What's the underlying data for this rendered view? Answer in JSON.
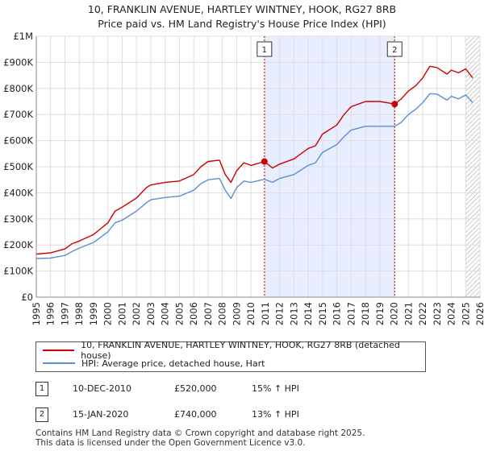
{
  "title_line1": "10, FRANKLIN AVENUE, HARTLEY WINTNEY, HOOK, RG27 8RB",
  "title_line2": "Price paid vs. HM Land Registry's House Price Index (HPI)",
  "legend": {
    "property_label": "10, FRANKLIN AVENUE, HARTLEY WINTNEY, HOOK, RG27 8RB (detached house)",
    "hpi_label": "HPI: Average price, detached house, Hart"
  },
  "transactions": [
    {
      "num": "1",
      "date": "10-DEC-2010",
      "price": "£520,000",
      "hpi": "15% ↑ HPI"
    },
    {
      "num": "2",
      "date": "15-JAN-2020",
      "price": "£740,000",
      "hpi": "13% ↑ HPI"
    }
  ],
  "footer_line1": "Contains HM Land Registry data © Crown copyright and database right 2025.",
  "footer_line2": "This data is licensed under the Open Government Licence v3.0.",
  "colors": {
    "property": "#cc0000",
    "hpi": "#5b8fd0",
    "shade": "#e8eeff",
    "grid": "#dddddd",
    "marker_line": "#cc0000"
  },
  "chart_data": {
    "type": "line",
    "xlim": [
      1995,
      2026
    ],
    "ylim": [
      0,
      1000000
    ],
    "y_ticks": [
      0,
      100000,
      200000,
      300000,
      400000,
      500000,
      600000,
      700000,
      800000,
      900000,
      1000000
    ],
    "y_tick_labels": [
      "£0",
      "£100K",
      "£200K",
      "£300K",
      "£400K",
      "£500K",
      "£600K",
      "£700K",
      "£800K",
      "£900K",
      "£1M"
    ],
    "x_ticks": [
      1995,
      1996,
      1997,
      1998,
      1999,
      2000,
      2001,
      2002,
      2003,
      2004,
      2005,
      2006,
      2007,
      2008,
      2009,
      2010,
      2011,
      2012,
      2013,
      2014,
      2015,
      2016,
      2017,
      2018,
      2019,
      2020,
      2021,
      2022,
      2023,
      2024,
      2025,
      2026
    ],
    "x_tick_labels": [
      "1995",
      "1996",
      "1997",
      "1998",
      "1999",
      "2000",
      "2001",
      "2002",
      "2003",
      "2004",
      "2005",
      "2006",
      "2007",
      "2008",
      "2009",
      "2010",
      "2011",
      "2012",
      "2013",
      "2014",
      "2015",
      "2016",
      "2017",
      "2018",
      "2019",
      "2020",
      "2021",
      "2022",
      "2023",
      "2024",
      "2025",
      "2026"
    ],
    "shaded_range": [
      2010.94,
      2020.04
    ],
    "hatch_start": 2025.0,
    "markers": [
      {
        "label": "1",
        "x": 2010.94,
        "y": 520000
      },
      {
        "label": "2",
        "x": 2020.04,
        "y": 740000
      }
    ],
    "series": [
      {
        "name": "10, FRANKLIN AVENUE, HARTLEY WINTNEY, HOOK, RG27 8RB (detached house)",
        "x": [
          1995,
          1996,
          1997,
          1997.5,
          1998,
          1999,
          2000,
          2000.5,
          2001,
          2002,
          2002.7,
          2003,
          2004,
          2005,
          2006,
          2006.5,
          2007,
          2007.8,
          2008.2,
          2008.6,
          2009.0,
          2009.5,
          2010,
          2010.94,
          2011.5,
          2012,
          2013,
          2014,
          2014.5,
          2015,
          2016,
          2016.5,
          2017,
          2018,
          2019,
          2020.04,
          2020.5,
          2021,
          2021.5,
          2022,
          2022.5,
          2023,
          2023.7,
          2024,
          2024.5,
          2025,
          2025.5
        ],
        "y": [
          165000,
          170000,
          185000,
          205000,
          215000,
          240000,
          285000,
          330000,
          345000,
          380000,
          420000,
          430000,
          440000,
          445000,
          470000,
          500000,
          520000,
          525000,
          470000,
          440000,
          485000,
          515000,
          505000,
          520000,
          495000,
          510000,
          530000,
          570000,
          580000,
          625000,
          660000,
          700000,
          730000,
          750000,
          750000,
          740000,
          760000,
          790000,
          810000,
          840000,
          885000,
          880000,
          855000,
          870000,
          860000,
          875000,
          840000
        ]
      },
      {
        "name": "HPI: Average price, detached house, Hart",
        "x": [
          1995,
          1996,
          1997,
          1997.5,
          1998,
          1999,
          2000,
          2000.5,
          2001,
          2002,
          2002.7,
          2003,
          2004,
          2005,
          2006,
          2006.5,
          2007,
          2007.8,
          2008.2,
          2008.6,
          2009.0,
          2009.5,
          2010,
          2010.94,
          2011.5,
          2012,
          2013,
          2014,
          2014.5,
          2015,
          2016,
          2016.5,
          2017,
          2018,
          2019,
          2020.04,
          2020.5,
          2021,
          2021.5,
          2022,
          2022.5,
          2023,
          2023.7,
          2024,
          2024.5,
          2025,
          2025.5
        ],
        "y": [
          148000,
          150000,
          160000,
          175000,
          188000,
          210000,
          250000,
          285000,
          295000,
          330000,
          362000,
          373000,
          382000,
          387000,
          410000,
          435000,
          450000,
          455000,
          410000,
          378000,
          420000,
          445000,
          440000,
          452000,
          440000,
          455000,
          470000,
          505000,
          515000,
          555000,
          585000,
          615000,
          640000,
          655000,
          655000,
          655000,
          670000,
          700000,
          720000,
          745000,
          780000,
          778000,
          755000,
          770000,
          760000,
          775000,
          745000
        ]
      }
    ]
  }
}
